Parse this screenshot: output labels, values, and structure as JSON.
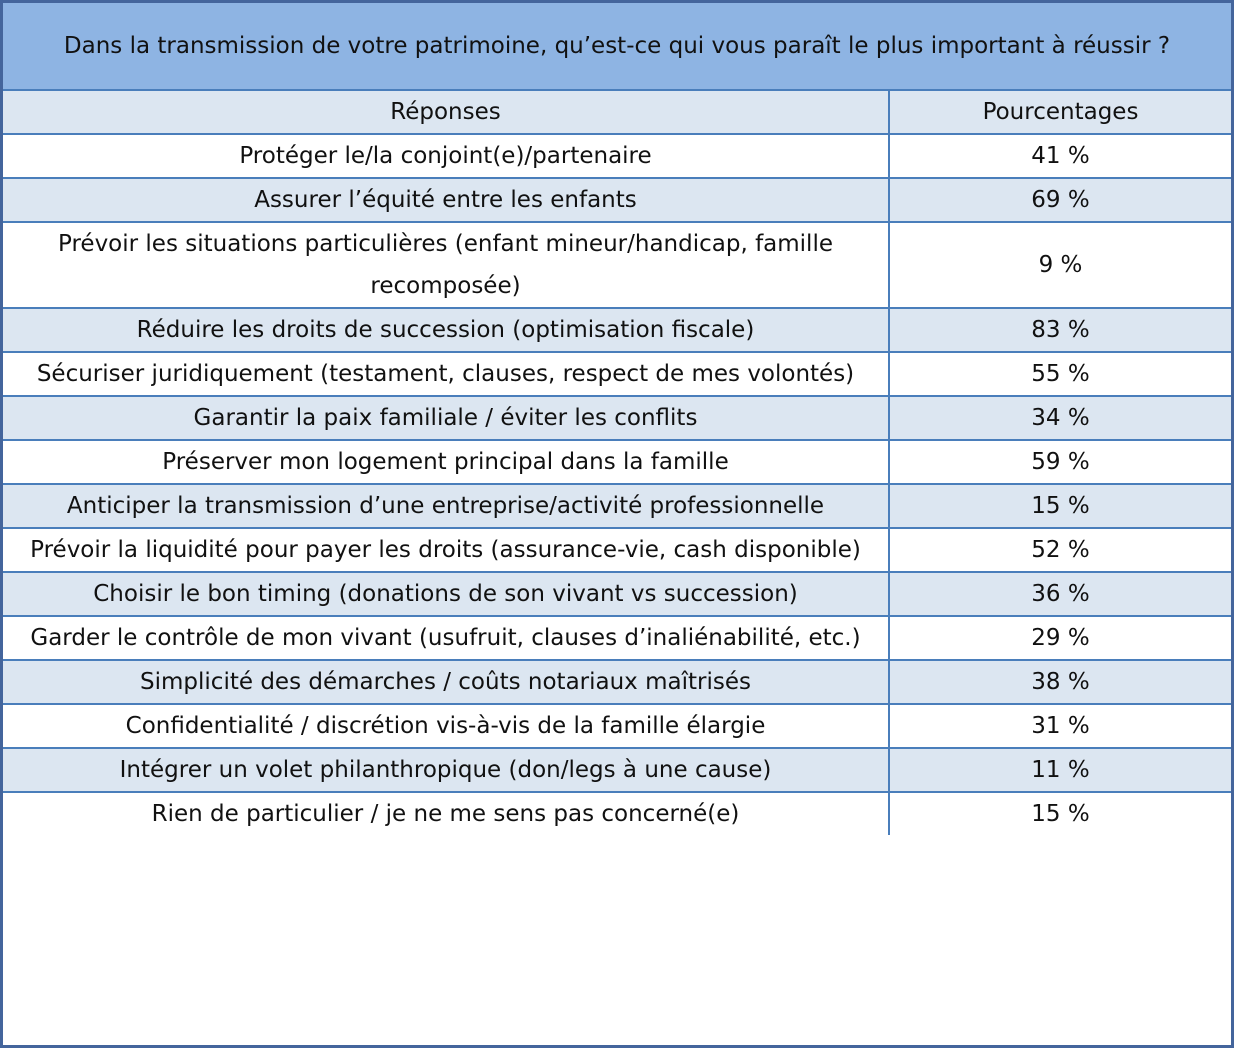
{
  "page": {
    "type": "survey-results-table"
  },
  "colors": {
    "title_bg": "#8EB4E3",
    "header_bg": "#DCE6F1",
    "row_bg": "#FFFFFF",
    "row_alt_bg": "#DCE6F1",
    "border": "#4A7EBB",
    "outer_border": "#44659C",
    "text": "#111111"
  },
  "chart_data": {
    "type": "table",
    "title": "Dans la transmission de votre patrimoine, qu’est-ce qui vous paraît le plus important à réussir ?",
    "columns": [
      "Réponses",
      "Pourcentages"
    ],
    "unit": "%",
    "rows": [
      {
        "response": "Protéger le/la conjoint(e)/partenaire",
        "percent": 41,
        "percentage_label": "41 %"
      },
      {
        "response": "Assurer l’équité entre les enfants",
        "percent": 69,
        "percentage_label": "69 %"
      },
      {
        "response": "Prévoir les situations particulières (enfant mineur/handicap, famille recomposée)",
        "percent": 9,
        "percentage_label": "9 %"
      },
      {
        "response": "Réduire les droits de succession (optimisation fiscale)",
        "percent": 83,
        "percentage_label": "83 %"
      },
      {
        "response": "Sécuriser juridiquement (testament, clauses, respect de mes volontés)",
        "percent": 55,
        "percentage_label": "55 %"
      },
      {
        "response": "Garantir la paix familiale / éviter les conflits",
        "percent": 34,
        "percentage_label": "34 %"
      },
      {
        "response": "Préserver mon logement principal dans la famille",
        "percent": 59,
        "percentage_label": "59 %"
      },
      {
        "response": "Anticiper la transmission d’une entreprise/activité professionnelle",
        "percent": 15,
        "percentage_label": "15 %"
      },
      {
        "response": "Prévoir la liquidité pour payer les droits (assurance-vie, cash disponible)",
        "percent": 52,
        "percentage_label": "52 %"
      },
      {
        "response": "Choisir le bon timing (donations de son vivant vs succession)",
        "percent": 36,
        "percentage_label": "36 %"
      },
      {
        "response": "Garder le contrôle de mon vivant (usufruit, clauses d’inaliénabilité, etc.)",
        "percent": 29,
        "percentage_label": "29 %"
      },
      {
        "response": "Simplicité des démarches / coûts notariaux maîtrisés",
        "percent": 38,
        "percentage_label": "38 %"
      },
      {
        "response": "Confidentialité / discrétion vis-à-vis de la famille élargie",
        "percent": 31,
        "percentage_label": "31 %"
      },
      {
        "response": "Intégrer un volet philanthropique (don/legs à une cause)",
        "percent": 11,
        "percentage_label": "11 %"
      },
      {
        "response": "Rien de particulier / je ne me sens pas concerné(e)",
        "percent": 15,
        "percentage_label": "15 %"
      }
    ]
  }
}
